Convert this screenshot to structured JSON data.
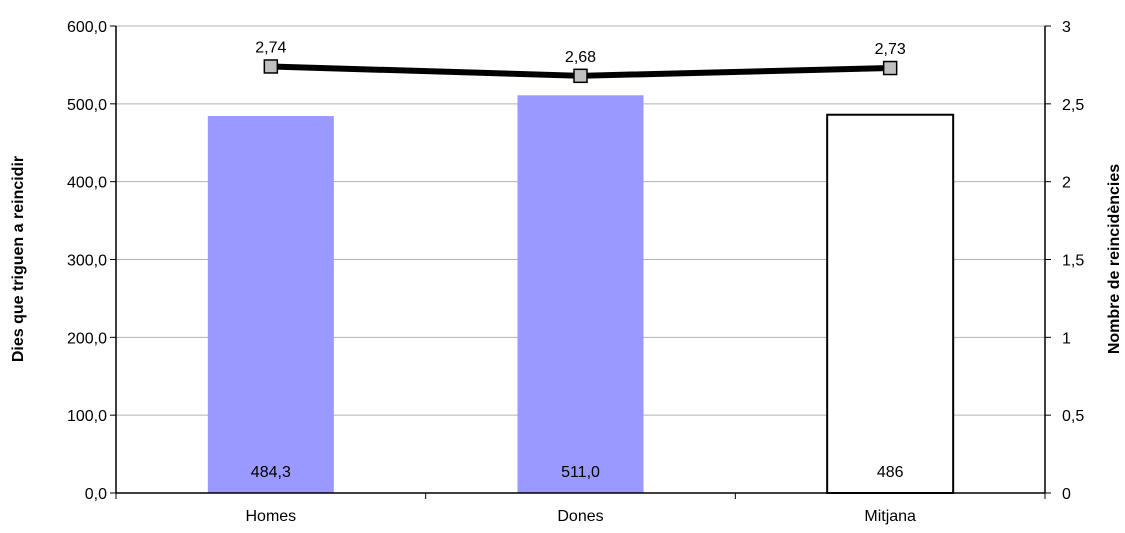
{
  "chart_data": {
    "type": "bar",
    "categories": [
      "Homes",
      "Dones",
      "Mitjana"
    ],
    "series": [
      {
        "axis": "left",
        "chart": "bar",
        "values": [
          484.3,
          511.0,
          486
        ],
        "labels": [
          "484,3",
          "511,0",
          "486"
        ],
        "colors": [
          "#9999ff",
          "#9999ff",
          "#ffffff"
        ]
      },
      {
        "axis": "right",
        "chart": "line",
        "values": [
          2.74,
          2.68,
          2.73
        ],
        "labels": [
          "2,74",
          "2,68",
          "2,73"
        ],
        "color": "#000000",
        "marker_color": "#c0c0c0"
      }
    ],
    "title": "",
    "xlabel": "",
    "ylabel": "Dies que triguen a reincidir",
    "y2label": "Nombre de reincidències",
    "ylim": [
      0,
      600
    ],
    "y2lim": [
      0,
      3
    ],
    "yticks": [
      "0,0",
      "100,0",
      "200,0",
      "300,0",
      "400,0",
      "500,0",
      "600,0"
    ],
    "y2ticks": [
      "0",
      "0,5",
      "1",
      "1,5",
      "2",
      "2,5",
      "3"
    ],
    "grid": true,
    "legend": "none"
  }
}
